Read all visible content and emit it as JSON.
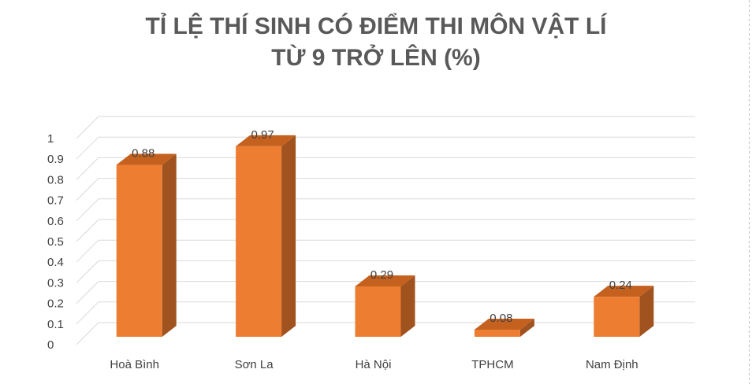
{
  "chart_data": {
    "type": "bar",
    "title": "TỈ LỆ THÍ SINH CÓ ĐIỂM THI MÔN VẬT LÍ",
    "subtitle": "TỪ 9 TRỞ LÊN (%)",
    "categories": [
      "Hoà Bình",
      "Sơn La",
      "Hà Nội",
      "TPHCM",
      "Nam Định"
    ],
    "values": [
      0.88,
      0.97,
      0.29,
      0.08,
      0.24
    ],
    "value_labels": [
      "0.88",
      "0.97",
      "0.29",
      "0.08",
      "0.24"
    ],
    "y_ticks": [
      "0",
      "0.1",
      "0.2",
      "0.3",
      "0.4",
      "0.5",
      "0.6",
      "0.7",
      "0.8",
      "0.9",
      "1"
    ],
    "ylim": [
      0,
      1
    ],
    "grid": true,
    "style": "3d-column",
    "colors": {
      "front": "#ED7D31",
      "side": "#A0521F",
      "top": "#C5611F",
      "grid": "#d9d9d9",
      "text": "#404040"
    }
  }
}
